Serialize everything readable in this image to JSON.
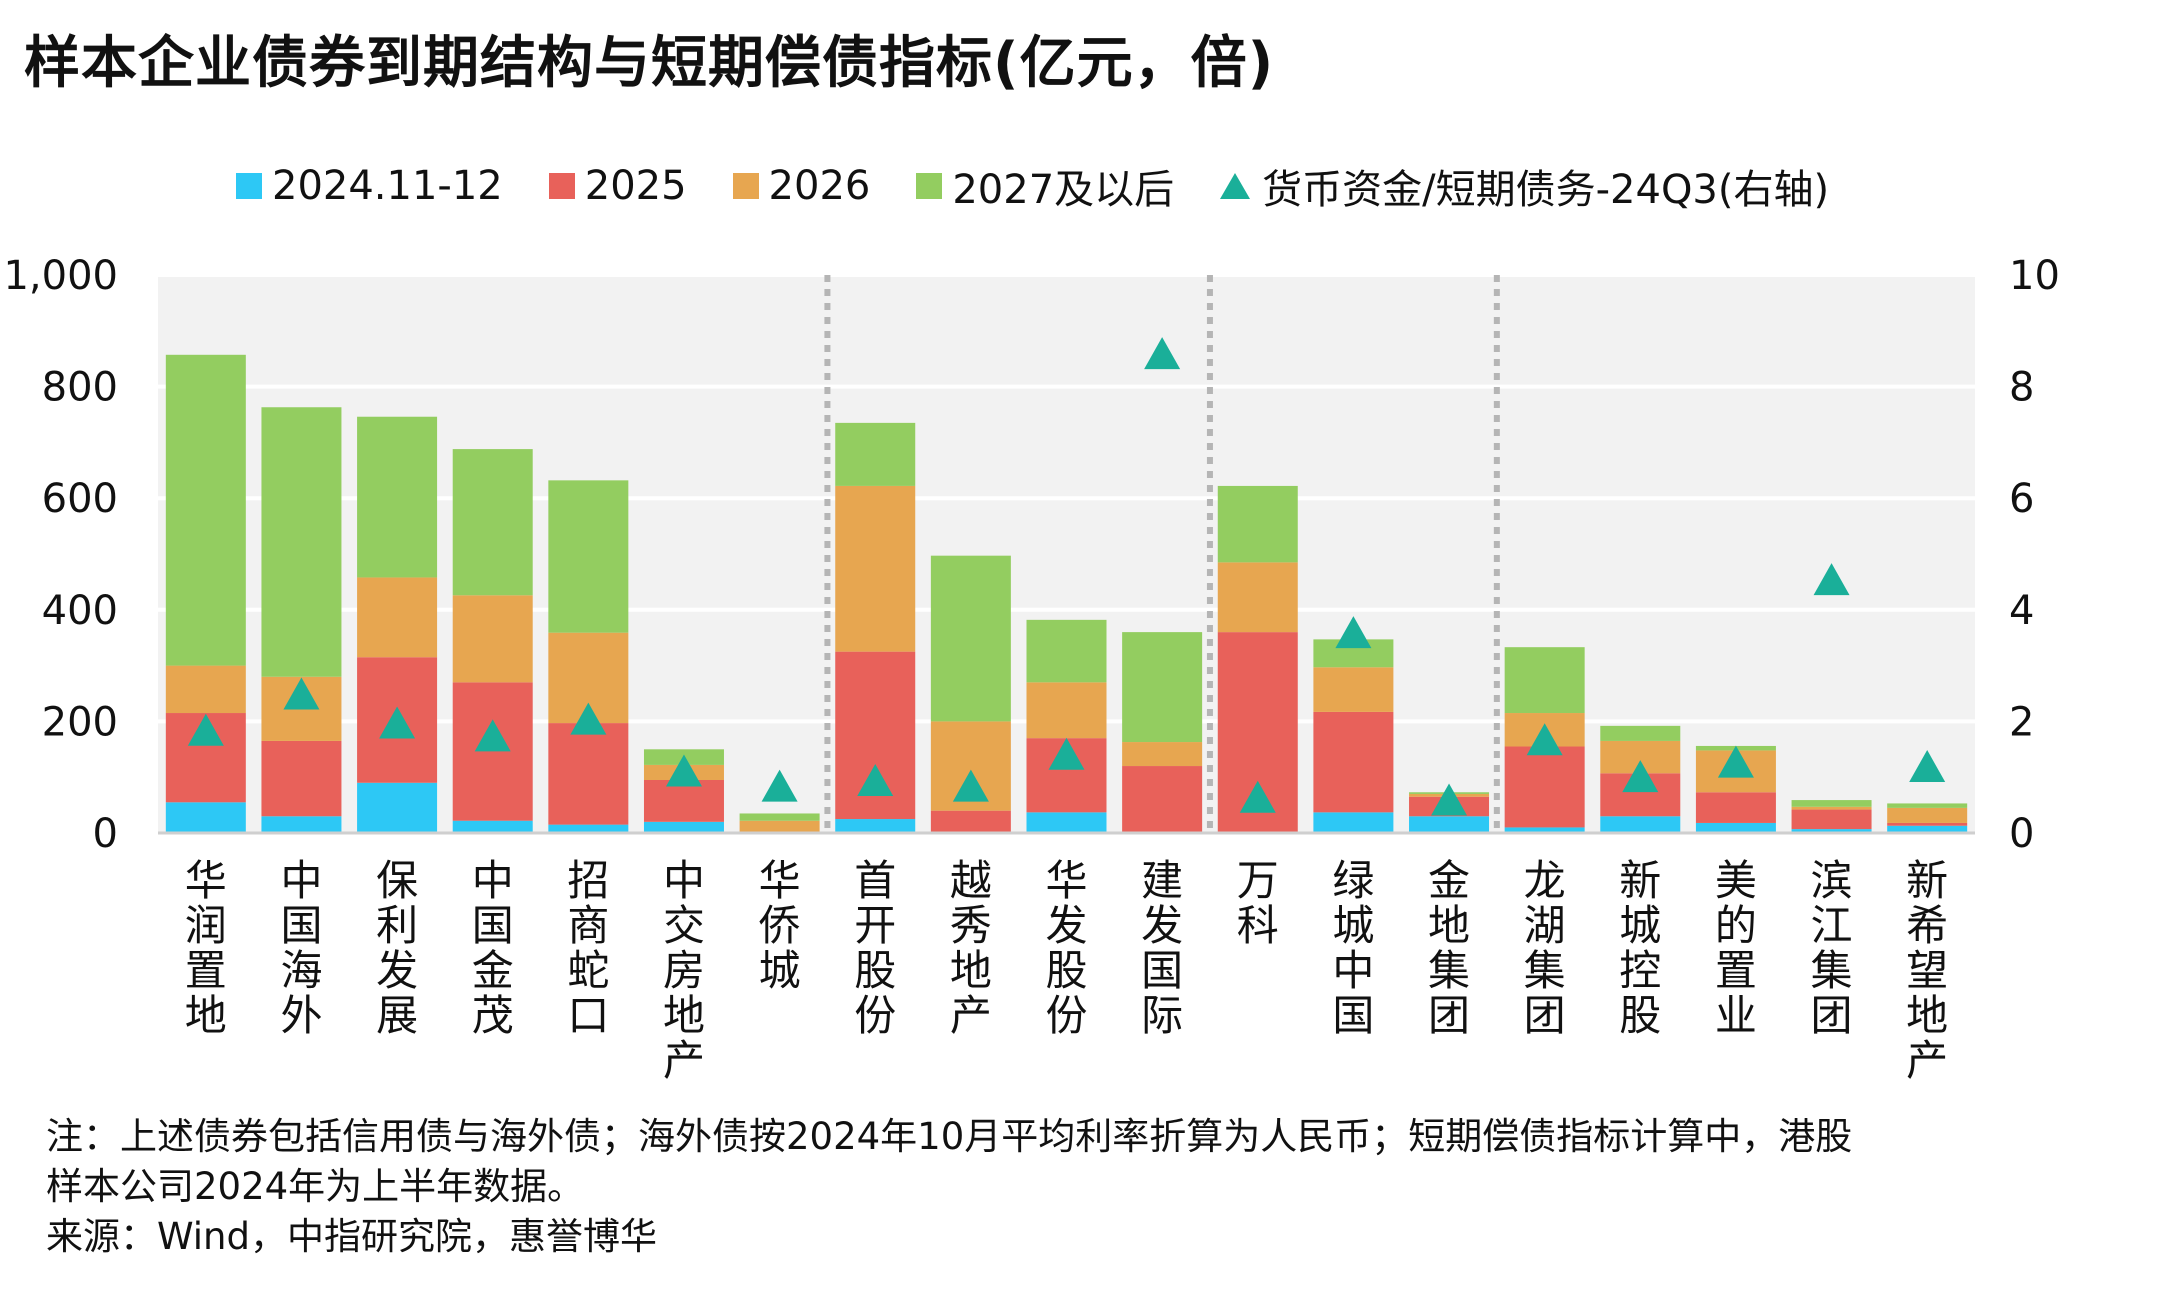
{
  "title": "样本企业债券到期结构与短期偿债指标(亿元，倍)",
  "legend": {
    "s1": "2024.11-12",
    "s2": "2025",
    "s3": "2026",
    "s4": "2027及以后",
    "ratio": "货币资金/短期债务-24Q3(右轴)"
  },
  "colors": {
    "s1": "#2dc8f5",
    "s2": "#e8615a",
    "s3": "#e7a650",
    "s4": "#93cd60",
    "ratio": "#1aaf99",
    "plot_bg": "#f2f2f2",
    "divider": "#b5b5b5"
  },
  "chart_data": {
    "type": "bar",
    "stacked": true,
    "categories": [
      "华润置地",
      "中国海外",
      "保利发展",
      "中国金茂",
      "招商蛇口",
      "中交房地产",
      "华侨城",
      "首开股份",
      "越秀地产",
      "华发股份",
      "建发国际",
      "万科",
      "绿城中国",
      "金地集团",
      "龙湖集团",
      "新城控股",
      "美的置业",
      "滨江集团",
      "新希望地产"
    ],
    "series": [
      {
        "name": "2024.11-12",
        "values": [
          55,
          30,
          90,
          22,
          15,
          20,
          0,
          25,
          0,
          37,
          0,
          0,
          37,
          30,
          10,
          30,
          18,
          7,
          13
        ]
      },
      {
        "name": "2025",
        "values": [
          160,
          135,
          225,
          248,
          182,
          75,
          0,
          300,
          40,
          133,
          120,
          360,
          180,
          35,
          145,
          77,
          55,
          35,
          5
        ]
      },
      {
        "name": "2026",
        "values": [
          85,
          115,
          143,
          156,
          162,
          27,
          22,
          297,
          160,
          100,
          43,
          125,
          80,
          5,
          60,
          58,
          75,
          5,
          27
        ]
      },
      {
        "name": "2027及以后",
        "values": [
          557,
          483,
          288,
          262,
          273,
          28,
          13,
          113,
          297,
          112,
          197,
          137,
          50,
          3,
          118,
          27,
          8,
          12,
          8
        ]
      }
    ],
    "right_axis_series": {
      "name": "货币资金/短期债务-24Q3(右轴)",
      "type": "scatter",
      "marker": "triangle",
      "values": [
        1.85,
        2.5,
        1.98,
        1.75,
        2.05,
        1.12,
        0.85,
        0.95,
        0.85,
        1.42,
        8.6,
        0.65,
        3.6,
        0.6,
        1.68,
        1.02,
        1.28,
        4.55,
        1.2
      ]
    },
    "ylim": [
      0,
      1000
    ],
    "y_ticks": [
      "0",
      "200",
      "400",
      "600",
      "800",
      "1,000"
    ],
    "y2lim": [
      0,
      10
    ],
    "y2_ticks": [
      "0",
      "2",
      "4",
      "6",
      "8",
      "10"
    ],
    "group_dividers_after": [
      6,
      10,
      13
    ],
    "grid": true
  },
  "footnote": {
    "line1": "注：上述债券包括信用债与海外债；海外债按2024年10月平均利率折算为人民币；短期偿债指标计算中，港股",
    "line2": "样本公司2024年为上半年数据。",
    "line3": "来源：Wind，中指研究院，惠誉博华"
  }
}
